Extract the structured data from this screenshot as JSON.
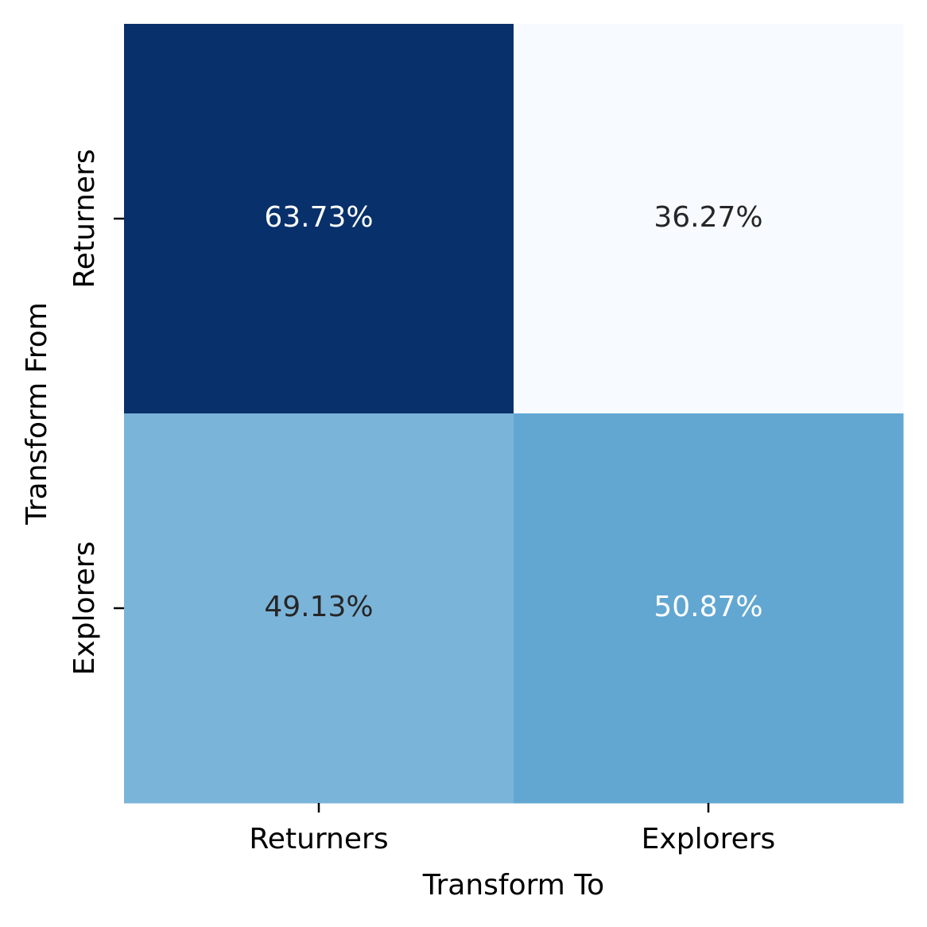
{
  "chart_data": {
    "type": "heatmap",
    "x_label": "Transform To",
    "y_label": "Transform From",
    "x_categories": [
      "Returners",
      "Explorers"
    ],
    "y_categories": [
      "Returners",
      "Explorers"
    ],
    "values": [
      [
        63.73,
        36.27
      ],
      [
        49.13,
        50.87
      ]
    ],
    "value_labels": [
      [
        "63.73%",
        "36.27%"
      ],
      [
        "49.13%",
        "50.87%"
      ]
    ],
    "colors": [
      [
        "#08306b",
        "#f7fbff"
      ],
      [
        "#7bb4d9",
        "#62a7d2"
      ]
    ],
    "label_colors": [
      [
        "#ffffff",
        "#262626"
      ],
      [
        "#262626",
        "#ffffff"
      ]
    ]
  }
}
